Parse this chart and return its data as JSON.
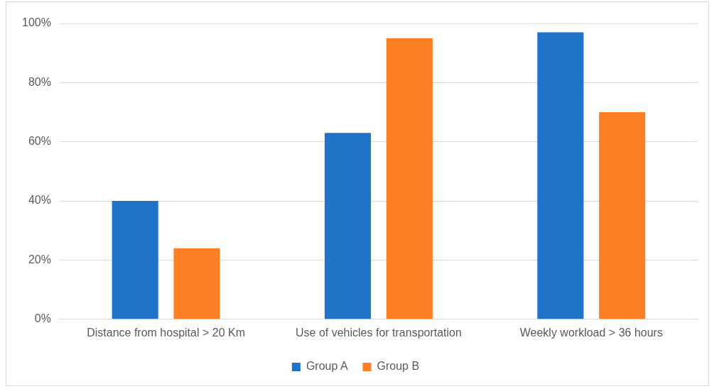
{
  "chart_data": {
    "type": "bar",
    "categories": [
      "Distance from hospital > 20 Km",
      "Use of vehicles for transportation",
      "Weekly workload > 36 hours"
    ],
    "series": [
      {
        "name": "Group A",
        "color": "#1f74c8",
        "values": [
          40,
          63,
          97
        ]
      },
      {
        "name": "Group B",
        "color": "#fd7f23",
        "values": [
          24,
          95,
          70
        ]
      }
    ],
    "ylim": [
      0,
      100
    ],
    "yticks": [
      {
        "value": 0,
        "label": "0%"
      },
      {
        "value": 20,
        "label": "20%"
      },
      {
        "value": 40,
        "label": "40%"
      },
      {
        "value": 60,
        "label": "60%"
      },
      {
        "value": 80,
        "label": "80%"
      },
      {
        "value": 100,
        "label": "100%"
      }
    ],
    "grid": "y",
    "legend": "bottom"
  }
}
